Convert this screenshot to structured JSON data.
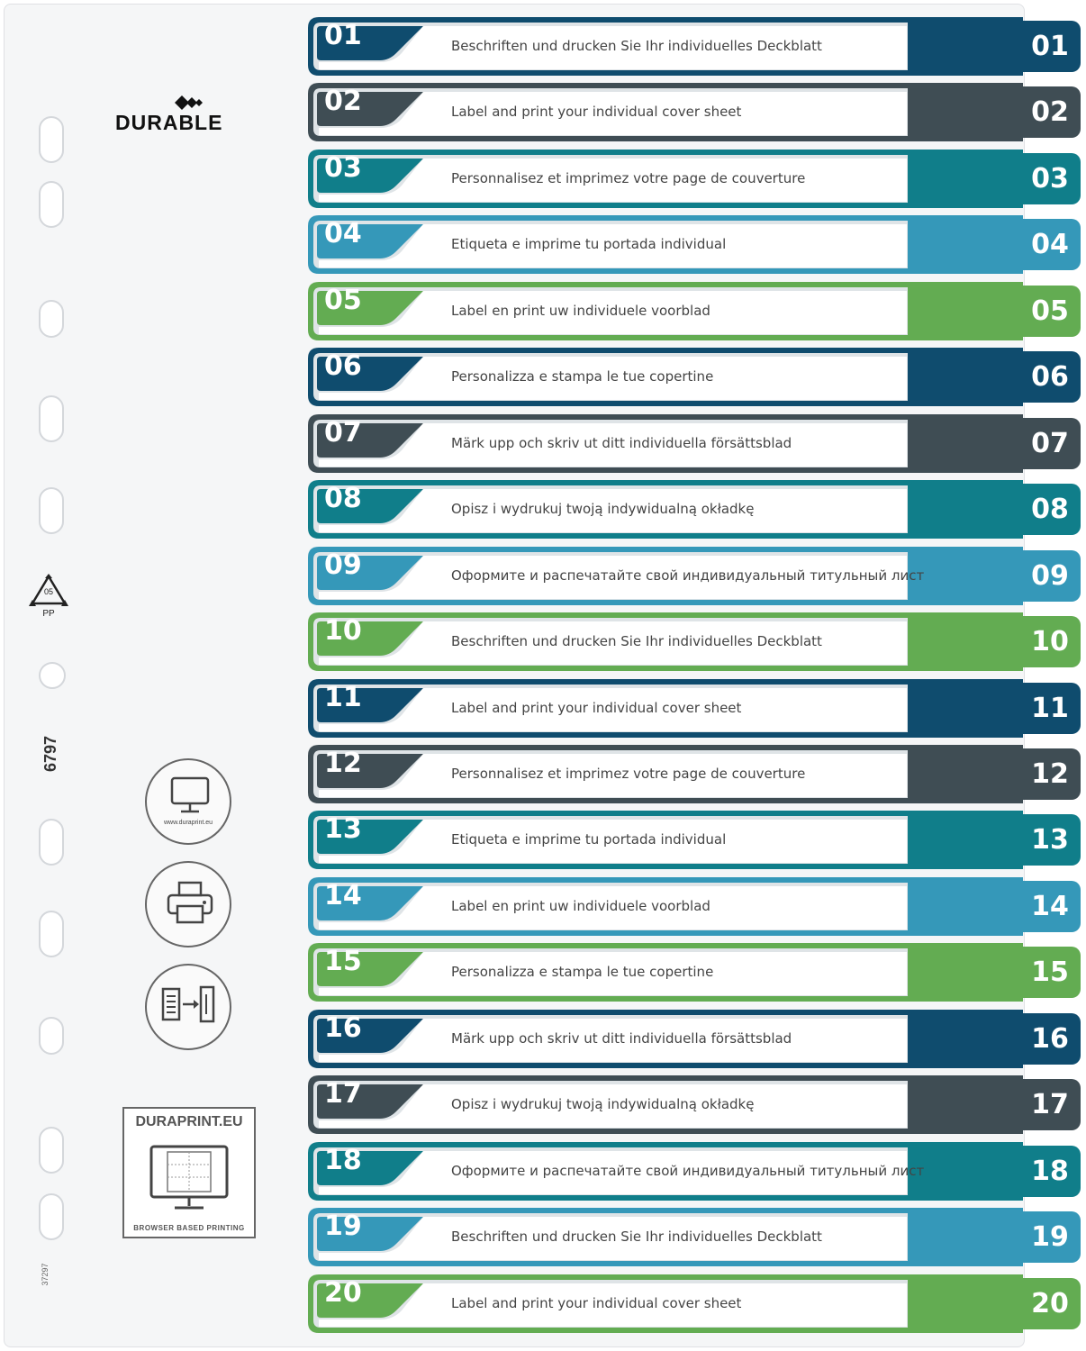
{
  "brand": {
    "logo_text": "DURABLE"
  },
  "recycle": {
    "code": "05",
    "material": "PP"
  },
  "product_number": "6797",
  "small_code": "37297",
  "icons": [
    {
      "name": "monitor-icon",
      "caption": "www.duraprint.eu"
    },
    {
      "name": "printer-icon",
      "caption": ""
    },
    {
      "name": "insert-into-binder-icon",
      "caption": ""
    }
  ],
  "duraprint": {
    "title": "DURAPRINT.EU",
    "subtitle": "BROWSER BASED PRINTING"
  },
  "colors": {
    "navy": "#0f4c6e",
    "slate": "#3f4d54",
    "teal": "#107e8a",
    "sky": "#3598b9",
    "green": "#63ac52"
  },
  "tabs": [
    {
      "num": "01",
      "text": "Beschriften und drucken Sie Ihr individuelles Deckblatt",
      "color": "#0f4c6e"
    },
    {
      "num": "02",
      "text": "Label and print your individual cover sheet",
      "color": "#3f4d54"
    },
    {
      "num": "03",
      "text": "Personnalisez et imprimez votre page de couverture",
      "color": "#107e8a"
    },
    {
      "num": "04",
      "text": "Etiqueta e imprime tu portada individual",
      "color": "#3598b9"
    },
    {
      "num": "05",
      "text": "Label en print uw individuele voorblad",
      "color": "#63ac52"
    },
    {
      "num": "06",
      "text": "Personalizza e stampa le tue copertine",
      "color": "#0f4c6e"
    },
    {
      "num": "07",
      "text": "Märk upp och skriv ut ditt individuella försättsblad",
      "color": "#3f4d54"
    },
    {
      "num": "08",
      "text": "Opisz i wydrukuj twoją indywidualną okładkę",
      "color": "#107e8a"
    },
    {
      "num": "09",
      "text": "Оформите и распечатайте свой индивидуальный титульный лист",
      "color": "#3598b9"
    },
    {
      "num": "10",
      "text": "Beschriften und drucken Sie Ihr individuelles Deckblatt",
      "color": "#63ac52"
    },
    {
      "num": "11",
      "text": "Label and print your individual cover sheet",
      "color": "#0f4c6e"
    },
    {
      "num": "12",
      "text": "Personnalisez et imprimez votre page de couverture",
      "color": "#3f4d54"
    },
    {
      "num": "13",
      "text": "Etiqueta e imprime tu portada individual",
      "color": "#107e8a"
    },
    {
      "num": "14",
      "text": "Label en print uw individuele voorblad",
      "color": "#3598b9"
    },
    {
      "num": "15",
      "text": "Personalizza e stampa le tue copertine",
      "color": "#63ac52"
    },
    {
      "num": "16",
      "text": "Märk upp och skriv ut ditt individuella försättsblad",
      "color": "#0f4c6e"
    },
    {
      "num": "17",
      "text": "Opisz i wydrukuj twoją indywidualną okładkę",
      "color": "#3f4d54"
    },
    {
      "num": "18",
      "text": "Оформите и распечатайте свой индивидуальный титульный лист",
      "color": "#107e8a"
    },
    {
      "num": "19",
      "text": "Beschriften und drucken Sie Ihr individuelles Deckblatt",
      "color": "#3598b9"
    },
    {
      "num": "20",
      "text": "Label and print your individual cover sheet",
      "color": "#63ac52"
    }
  ]
}
